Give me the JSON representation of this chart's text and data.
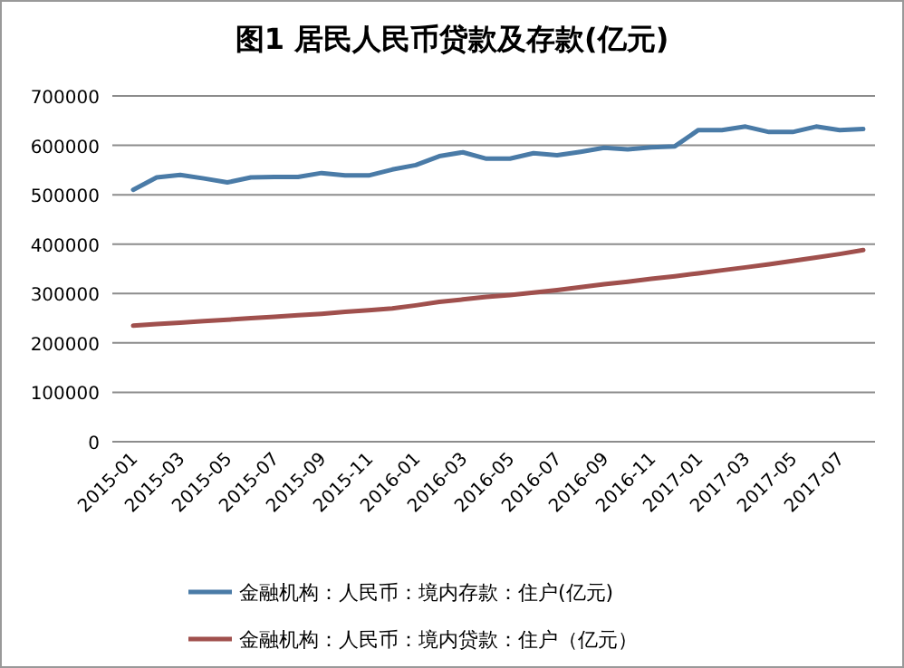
{
  "chart_data": {
    "type": "line",
    "title": "图1 居民人民币贷款及存款(亿元)",
    "categories": [
      "2015-01",
      null,
      "2015-03",
      null,
      "2015-05",
      null,
      "2015-07",
      null,
      "2015-09",
      null,
      "2015-11",
      null,
      "2016-01",
      null,
      "2016-03",
      null,
      "2016-05",
      null,
      "2016-07",
      null,
      "2016-09",
      null,
      "2016-11",
      null,
      "2017-01",
      null,
      "2017-03",
      null,
      "2017-05",
      null,
      "2017-07",
      null
    ],
    "series": [
      {
        "name": "金融机构：人民币：境内存款：住户(亿元)",
        "color": "#4a7ba7",
        "values": [
          510000,
          535000,
          540000,
          533000,
          525000,
          535000,
          536000,
          536000,
          544000,
          539000,
          539000,
          551000,
          560000,
          578000,
          586000,
          573000,
          573000,
          584000,
          580000,
          587000,
          595000,
          592000,
          596000,
          598000,
          631000,
          631000,
          638000,
          627000,
          627000,
          638000,
          631000,
          633000
        ]
      },
      {
        "name": "金融机构：人民币：境内贷款：住户（亿元）",
        "color": "#a0504d",
        "values": [
          235000,
          238000,
          241000,
          244000,
          247000,
          250000,
          253000,
          256000,
          259000,
          263000,
          266000,
          270000,
          276000,
          283000,
          288000,
          293000,
          297000,
          302000,
          307000,
          313000,
          319000,
          324000,
          330000,
          335000,
          341000,
          347000,
          353000,
          359000,
          366000,
          373000,
          380000,
          388000
        ]
      }
    ],
    "ylim": [
      0,
      700000
    ],
    "yticks": [
      0,
      100000,
      200000,
      300000,
      400000,
      500000,
      600000,
      700000
    ],
    "grid": "y",
    "legend": "bottom"
  }
}
